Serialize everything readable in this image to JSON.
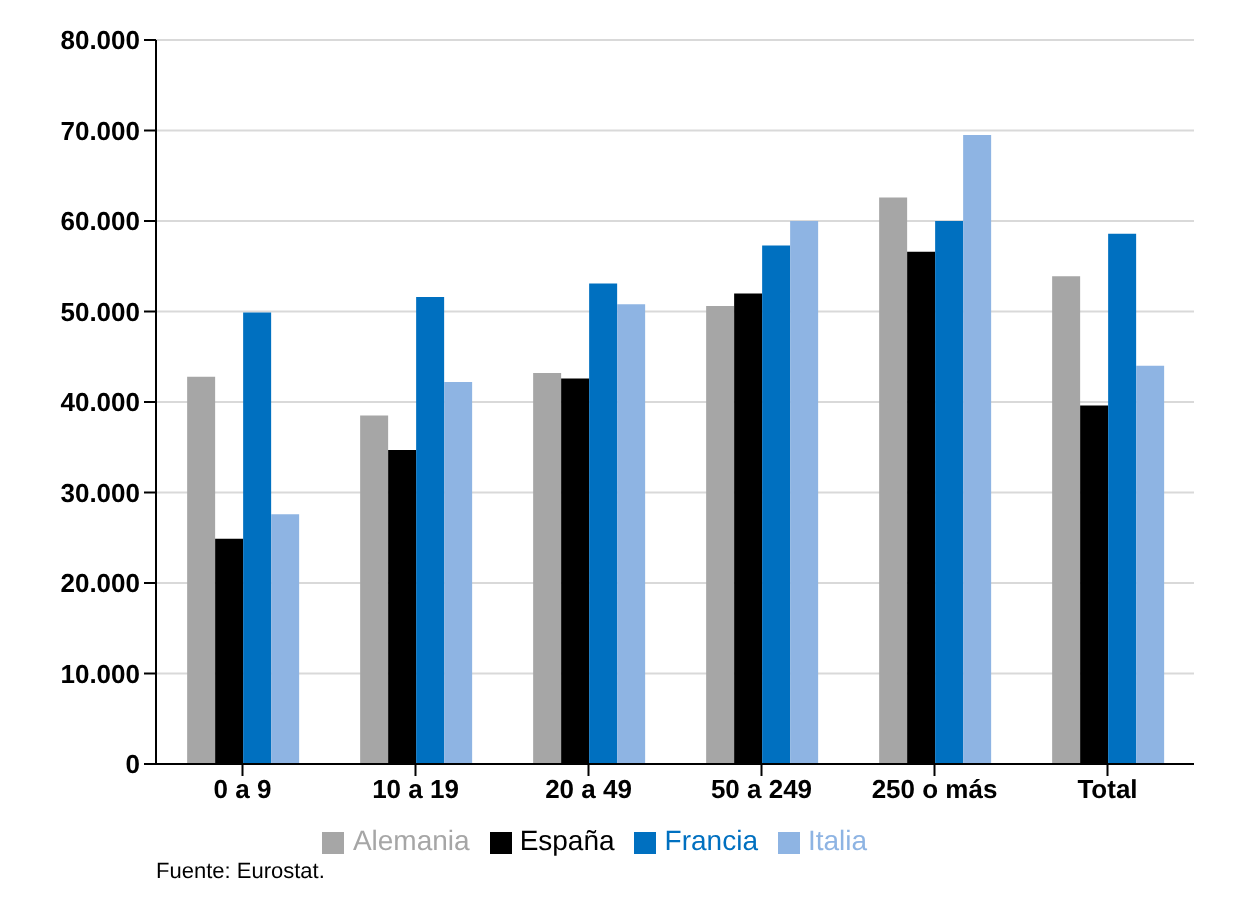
{
  "chart_data": {
    "type": "bar",
    "categories": [
      "0 a 9",
      "10 a 19",
      "20 a 49",
      "50 a 249",
      "250 o más",
      "Total"
    ],
    "series": [
      {
        "name": "Alemania",
        "color": "#a6a6a6",
        "values": [
          42800,
          38500,
          43200,
          50600,
          62600,
          53900
        ]
      },
      {
        "name": "España",
        "color": "#000000",
        "values": [
          24900,
          34700,
          42600,
          52000,
          56600,
          39600
        ]
      },
      {
        "name": "Francia",
        "color": "#0070c0",
        "values": [
          49900,
          51600,
          53100,
          57300,
          60000,
          58600
        ]
      },
      {
        "name": "Italia",
        "color": "#8eb4e3",
        "values": [
          27600,
          42200,
          50800,
          60000,
          69500,
          44000
        ]
      }
    ],
    "ylim": [
      0,
      80000
    ],
    "yticks": [
      {
        "value": 0,
        "label": "0"
      },
      {
        "value": 10000,
        "label": "10.000"
      },
      {
        "value": 20000,
        "label": "20.000"
      },
      {
        "value": 30000,
        "label": "30.000"
      },
      {
        "value": 40000,
        "label": "40.000"
      },
      {
        "value": 50000,
        "label": "50.000"
      },
      {
        "value": 60000,
        "label": "60.000"
      },
      {
        "value": 70000,
        "label": "70.000"
      },
      {
        "value": 80000,
        "label": "80.000"
      }
    ],
    "grid": "y",
    "legend": "bottom",
    "annotations": [
      "Fuente: Eurostat."
    ]
  }
}
